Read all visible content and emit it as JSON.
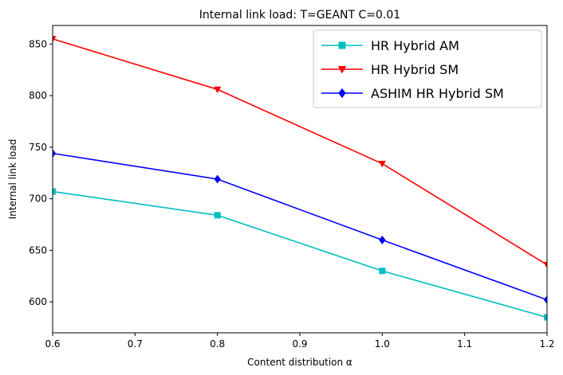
{
  "chart_data": {
    "type": "line",
    "title": "Internal link load: T=GEANT C=0.01",
    "xlabel": "Content distribution α",
    "ylabel": "Internal link load",
    "xlim": [
      0.6,
      1.2
    ],
    "ylim": [
      570,
      868
    ],
    "xticks": [
      "0.6",
      "0.7",
      "0.8",
      "0.9",
      "1.0",
      "1.1",
      "1.2"
    ],
    "xtick_values": [
      0.6,
      0.7,
      0.8,
      0.9,
      1.0,
      1.1,
      1.2
    ],
    "yticks": [
      "600",
      "650",
      "700",
      "750",
      "800",
      "850"
    ],
    "ytick_values": [
      600,
      650,
      700,
      750,
      800,
      850
    ],
    "grid": false,
    "legend_position": "top-right",
    "x": [
      0.6,
      0.8,
      1.0,
      1.2
    ],
    "series": [
      {
        "name": "HR Hybrid AM",
        "color": "#00bfbf",
        "marker": "square",
        "values": [
          707,
          684,
          630,
          585
        ]
      },
      {
        "name": "HR Hybrid SM",
        "color": "#ff0000",
        "marker": "triangle-down",
        "values": [
          855,
          806,
          734,
          636
        ]
      },
      {
        "name": "ASHIM HR Hybrid SM",
        "color": "#0000ff",
        "marker": "diamond",
        "values": [
          744,
          719,
          660,
          602
        ]
      }
    ]
  }
}
